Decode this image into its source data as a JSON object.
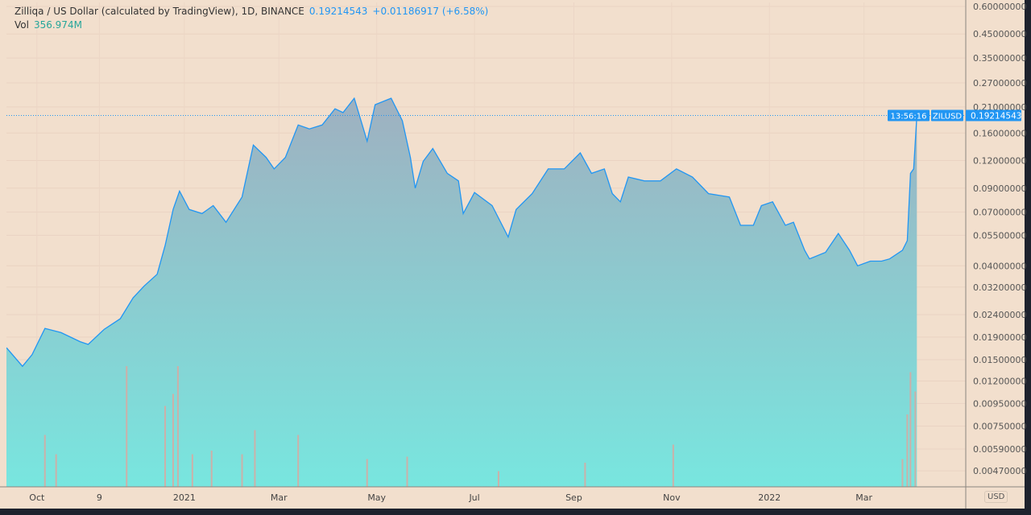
{
  "header": {
    "title": "Zilliqa / US Dollar (calculated by TradingView), 1D, BINANCE",
    "last_price": "0.19214543",
    "change": "+0.01186917 (+6.58%)",
    "vol_label": "Vol",
    "vol_value": "356.974M"
  },
  "price_axis": {
    "currency": "USD"
  },
  "last_price_tag": {
    "symbol": "ZILUSD",
    "price": "0.19214543",
    "countdown": "13:56:16"
  },
  "colors": {
    "background": "#f2dfcd",
    "line": "#2196f3",
    "fill_top": "#9fb0c0",
    "fill_bottom": "#78e6df",
    "label": "#2196f3",
    "volume": "#d9a8a0"
  },
  "chart_data": {
    "type": "area",
    "title": "Zilliqa / US Dollar (calculated by TradingView), 1D, BINANCE",
    "y_scale": "log",
    "ylim": [
      0.0042,
      0.62
    ],
    "grid": true,
    "y_ticks": [
      "0.60000000",
      "0.45000000",
      "0.35000000",
      "0.27000000",
      "0.21000000",
      "0.16000000",
      "0.12000000",
      "0.09000000",
      "0.07000000",
      "0.05500000",
      "0.04000000",
      "0.03200000",
      "0.02400000",
      "0.01900000",
      "0.01500000",
      "0.01200000",
      "0.00950000",
      "0.00750000",
      "0.00590000",
      "0.00470000"
    ],
    "x_ticks": [
      {
        "label": "Oct",
        "date": "2020-10-01"
      },
      {
        "label": "9",
        "date": "2020-11-09"
      },
      {
        "label": "2021",
        "date": "2021-01-01"
      },
      {
        "label": "Mar",
        "date": "2021-03-01"
      },
      {
        "label": "May",
        "date": "2021-05-01"
      },
      {
        "label": "Jul",
        "date": "2021-07-01"
      },
      {
        "label": "Sep",
        "date": "2021-09-01"
      },
      {
        "label": "Nov",
        "date": "2021-11-01"
      },
      {
        "label": "2022",
        "date": "2022-01-01"
      },
      {
        "label": "Mar",
        "date": "2022-03-01"
      }
    ],
    "series": [
      {
        "points": [
          [
            "2020-09-12",
            0.017
          ],
          [
            "2020-09-22",
            0.014
          ],
          [
            "2020-09-28",
            0.0158
          ],
          [
            "2020-10-06",
            0.0208
          ],
          [
            "2020-10-16",
            0.0199
          ],
          [
            "2020-10-28",
            0.0181
          ],
          [
            "2020-11-02",
            0.0176
          ],
          [
            "2020-11-12",
            0.0206
          ],
          [
            "2020-11-22",
            0.023
          ],
          [
            "2020-11-30",
            0.0286
          ],
          [
            "2020-12-07",
            0.0324
          ],
          [
            "2020-12-15",
            0.0366
          ],
          [
            "2020-12-20",
            0.0494
          ],
          [
            "2020-12-25",
            0.0722
          ],
          [
            "2020-12-29",
            0.0872
          ],
          [
            "2021-01-04",
            0.072
          ],
          [
            "2021-01-12",
            0.069
          ],
          [
            "2021-01-19",
            0.075
          ],
          [
            "2021-01-27",
            0.063
          ],
          [
            "2021-02-06",
            0.082
          ],
          [
            "2021-02-13",
            0.141
          ],
          [
            "2021-02-21",
            0.124
          ],
          [
            "2021-02-26",
            0.11
          ],
          [
            "2021-03-05",
            0.124
          ],
          [
            "2021-03-13",
            0.174
          ],
          [
            "2021-03-20",
            0.167
          ],
          [
            "2021-03-28",
            0.174
          ],
          [
            "2021-04-05",
            0.206
          ],
          [
            "2021-04-10",
            0.198
          ],
          [
            "2021-04-17",
            0.23
          ],
          [
            "2021-04-25",
            0.147
          ],
          [
            "2021-04-30",
            0.215
          ],
          [
            "2021-05-10",
            0.23
          ],
          [
            "2021-05-17",
            0.182
          ],
          [
            "2021-05-22",
            0.124
          ],
          [
            "2021-05-25",
            0.09
          ],
          [
            "2021-05-30",
            0.119
          ],
          [
            "2021-06-05",
            0.136
          ],
          [
            "2021-06-14",
            0.105
          ],
          [
            "2021-06-21",
            0.097
          ],
          [
            "2021-06-24",
            0.069
          ],
          [
            "2021-07-01",
            0.086
          ],
          [
            "2021-07-12",
            0.075
          ],
          [
            "2021-07-22",
            0.054
          ],
          [
            "2021-07-27",
            0.072
          ],
          [
            "2021-08-06",
            0.085
          ],
          [
            "2021-08-16",
            0.11
          ],
          [
            "2021-08-26",
            0.11
          ],
          [
            "2021-09-05",
            0.13
          ],
          [
            "2021-09-12",
            0.105
          ],
          [
            "2021-09-20",
            0.11
          ],
          [
            "2021-09-25",
            0.085
          ],
          [
            "2021-09-30",
            0.078
          ],
          [
            "2021-10-05",
            0.101
          ],
          [
            "2021-10-15",
            0.097
          ],
          [
            "2021-10-25",
            0.097
          ],
          [
            "2021-11-04",
            0.11
          ],
          [
            "2021-11-14",
            0.101
          ],
          [
            "2021-11-24",
            0.085
          ],
          [
            "2021-12-07",
            0.082
          ],
          [
            "2021-12-14",
            0.061
          ],
          [
            "2021-12-22",
            0.061
          ],
          [
            "2021-12-27",
            0.075
          ],
          [
            "2022-01-03",
            0.078
          ],
          [
            "2022-01-11",
            0.061
          ],
          [
            "2022-01-16",
            0.063
          ],
          [
            "2022-01-23",
            0.047
          ],
          [
            "2022-01-26",
            0.043
          ],
          [
            "2022-02-05",
            0.046
          ],
          [
            "2022-02-13",
            0.056
          ],
          [
            "2022-02-20",
            0.047
          ],
          [
            "2022-02-25",
            0.04
          ],
          [
            "2022-03-05",
            0.042
          ],
          [
            "2022-03-12",
            0.042
          ],
          [
            "2022-03-17",
            0.043
          ],
          [
            "2022-03-25",
            0.047
          ],
          [
            "2022-03-28",
            0.052
          ],
          [
            "2022-03-30",
            0.105
          ],
          [
            "2022-04-01",
            0.11
          ],
          [
            "2022-04-03",
            0.19214543
          ]
        ]
      }
    ],
    "volume_relative": [
      [
        "2020-10-06",
        0.43
      ],
      [
        "2020-10-13",
        0.27
      ],
      [
        "2020-11-26",
        1.0
      ],
      [
        "2020-12-20",
        0.67
      ],
      [
        "2020-12-25",
        0.77
      ],
      [
        "2020-12-28",
        1.0
      ],
      [
        "2021-01-06",
        0.27
      ],
      [
        "2021-01-18",
        0.3
      ],
      [
        "2021-02-06",
        0.27
      ],
      [
        "2021-02-14",
        0.47
      ],
      [
        "2021-03-13",
        0.43
      ],
      [
        "2021-04-25",
        0.23
      ],
      [
        "2021-05-20",
        0.25
      ],
      [
        "2021-07-16",
        0.13
      ],
      [
        "2021-09-08",
        0.2
      ],
      [
        "2021-11-02",
        0.35
      ],
      [
        "2022-03-25",
        0.23
      ],
      [
        "2022-03-28",
        0.6
      ],
      [
        "2022-03-30",
        0.95
      ],
      [
        "2022-04-02",
        0.79
      ]
    ]
  }
}
